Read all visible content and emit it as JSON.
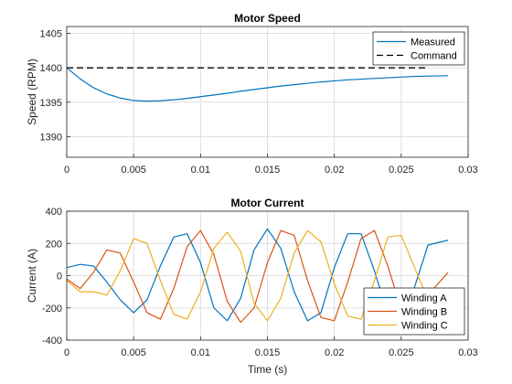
{
  "chart_data": [
    {
      "type": "line",
      "title": "Motor Speed",
      "xlabel": "",
      "ylabel": "Speed (RPM)",
      "xlim": [
        0,
        0.03
      ],
      "ylim": [
        1387,
        1406
      ],
      "xticks": [
        0,
        0.005,
        0.01,
        0.015,
        0.02,
        0.025,
        0.03
      ],
      "xtick_labels": [
        "0",
        "0.005",
        "0.01",
        "0.015",
        "0.02",
        "0.025",
        "0.03"
      ],
      "yticks": [
        1390,
        1395,
        1400,
        1405
      ],
      "ytick_labels": [
        "1390",
        "1395",
        "1400",
        "1405"
      ],
      "grid": true,
      "legend_position": "top-right",
      "series": [
        {
          "name": "Measured",
          "color": "#0072BD",
          "style": "solid",
          "x": [
            0,
            0.001,
            0.002,
            0.003,
            0.004,
            0.005,
            0.006,
            0.007,
            0.008,
            0.009,
            0.01,
            0.011,
            0.012,
            0.013,
            0.014,
            0.015,
            0.016,
            0.017,
            0.018,
            0.019,
            0.02,
            0.021,
            0.022,
            0.023,
            0.024,
            0.025,
            0.026,
            0.027,
            0.0285
          ],
          "values": [
            1400,
            1398.4,
            1397.1,
            1396.2,
            1395.6,
            1395.25,
            1395.15,
            1395.2,
            1395.35,
            1395.55,
            1395.8,
            1396.05,
            1396.3,
            1396.6,
            1396.85,
            1397.1,
            1397.35,
            1397.55,
            1397.75,
            1397.95,
            1398.1,
            1398.25,
            1398.35,
            1398.45,
            1398.55,
            1398.65,
            1398.75,
            1398.8,
            1398.85
          ]
        },
        {
          "name": "Command",
          "color": "#000000",
          "style": "dashed",
          "x": [
            0,
            0.027
          ],
          "values": [
            1400,
            1400
          ]
        }
      ]
    },
    {
      "type": "line",
      "title": "Motor Current",
      "xlabel": "Time (s)",
      "ylabel": "Current (A)",
      "xlim": [
        0,
        0.03
      ],
      "ylim": [
        -400,
        400
      ],
      "xticks": [
        0,
        0.005,
        0.01,
        0.015,
        0.02,
        0.025,
        0.03
      ],
      "xtick_labels": [
        "0",
        "0.005",
        "0.01",
        "0.015",
        "0.02",
        "0.025",
        "0.03"
      ],
      "yticks": [
        -400,
        -200,
        0,
        200,
        400
      ],
      "ytick_labels": [
        "-400",
        "-200",
        "0",
        "200",
        "400"
      ],
      "grid": true,
      "legend_position": "bottom-right",
      "series": [
        {
          "name": "Winding A",
          "color": "#0072BD",
          "x": [
            0,
            0.001,
            0.002,
            0.003,
            0.004,
            0.005,
            0.006,
            0.007,
            0.008,
            0.009,
            0.01,
            0.011,
            0.012,
            0.013,
            0.014,
            0.015,
            0.016,
            0.017,
            0.018,
            0.019,
            0.02,
            0.021,
            0.022,
            0.023,
            0.024,
            0.025,
            0.026,
            0.027,
            0.0285
          ],
          "values": [
            50,
            70,
            60,
            -40,
            -150,
            -230,
            -150,
            60,
            240,
            260,
            80,
            -200,
            -280,
            -140,
            160,
            290,
            170,
            -100,
            -280,
            -230,
            50,
            260,
            260,
            30,
            -240,
            -270,
            -70,
            190,
            220
          ]
        },
        {
          "name": "Winding B",
          "color": "#D95319",
          "x": [
            0,
            0.001,
            0.002,
            0.003,
            0.004,
            0.005,
            0.006,
            0.007,
            0.008,
            0.009,
            0.01,
            0.011,
            0.012,
            0.013,
            0.014,
            0.015,
            0.016,
            0.017,
            0.018,
            0.019,
            0.02,
            0.021,
            0.022,
            0.023,
            0.024,
            0.025,
            0.026,
            0.027,
            0.0285
          ],
          "values": [
            -20,
            -80,
            20,
            160,
            140,
            -40,
            -230,
            -270,
            -80,
            180,
            280,
            130,
            -160,
            -290,
            -200,
            80,
            280,
            250,
            -30,
            -260,
            -280,
            -40,
            230,
            280,
            60,
            -210,
            -290,
            -120,
            20
          ]
        },
        {
          "name": "Winding C",
          "color": "#EDB120",
          "x": [
            0,
            0.001,
            0.002,
            0.003,
            0.004,
            0.005,
            0.006,
            0.007,
            0.008,
            0.009,
            0.01,
            0.011,
            0.012,
            0.013,
            0.014,
            0.015,
            0.016,
            0.017,
            0.018,
            0.019,
            0.02,
            0.021,
            0.022,
            0.023,
            0.024,
            0.025,
            0.026,
            0.027,
            0.0285
          ],
          "values": [
            -30,
            -100,
            -100,
            -120,
            30,
            230,
            200,
            -30,
            -240,
            -270,
            -100,
            170,
            270,
            150,
            -170,
            -280,
            -140,
            140,
            280,
            210,
            -50,
            -250,
            -270,
            -30,
            240,
            250,
            50,
            -150,
            -170
          ]
        }
      ]
    }
  ]
}
